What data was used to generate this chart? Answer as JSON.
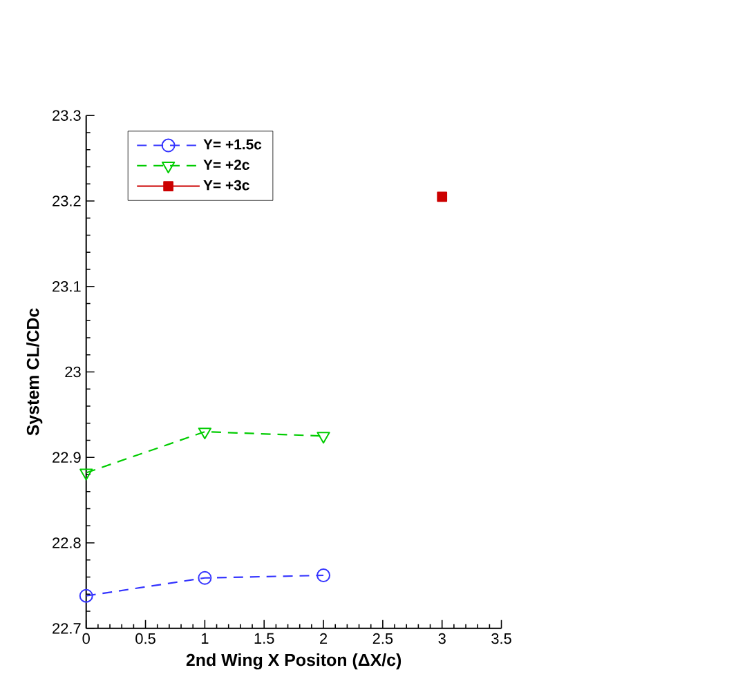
{
  "chart_data": {
    "type": "line",
    "xlabel": "2nd Wing X Positon (ΔX/c)",
    "ylabel": "System CL/CDc",
    "xlim": [
      0,
      3.5
    ],
    "xticks": [
      0,
      0.5,
      1,
      1.5,
      2,
      2.5,
      3,
      3.5
    ],
    "ylim": [
      22.7,
      23.3
    ],
    "yticks": [
      22.7,
      22.8,
      22.9,
      23,
      23.1,
      23.2,
      23.3
    ],
    "grid": false,
    "legend": "top left",
    "series": [
      {
        "name": "Y= +1.5c",
        "color": "#3333ff",
        "marker": "circle",
        "line_style": "dashed",
        "x": [
          0,
          1,
          2
        ],
        "values": [
          22.738,
          22.759,
          22.762
        ]
      },
      {
        "name": "Y= +2c",
        "color": "#00cc00",
        "marker": "triangle",
        "line_style": "dashed",
        "x": [
          0,
          1,
          2
        ],
        "values": [
          22.882,
          22.93,
          22.925
        ]
      },
      {
        "name": "Y= +3c",
        "color": "#cc0000",
        "marker": "square",
        "line_style": "solid",
        "x": [
          3
        ],
        "values": [
          23.205
        ]
      }
    ]
  }
}
